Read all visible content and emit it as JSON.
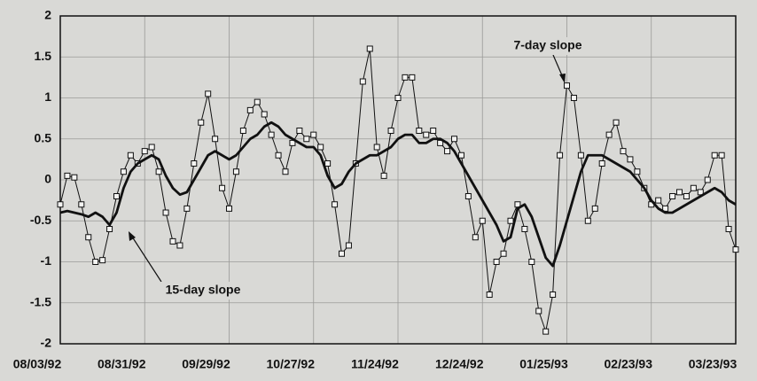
{
  "chart_data": {
    "type": "line",
    "categories": [
      "08/03/92",
      null,
      null,
      null,
      null,
      null,
      null,
      null,
      null,
      null,
      null,
      null,
      "08/31/92",
      null,
      null,
      null,
      null,
      null,
      null,
      null,
      null,
      null,
      null,
      null,
      "09/29/92",
      null,
      null,
      null,
      null,
      null,
      null,
      null,
      null,
      null,
      null,
      null,
      "10/27/92",
      null,
      null,
      null,
      null,
      null,
      null,
      null,
      null,
      null,
      null,
      null,
      "11/24/92",
      null,
      null,
      null,
      null,
      null,
      null,
      null,
      null,
      null,
      null,
      null,
      "12/24/92",
      null,
      null,
      null,
      null,
      null,
      null,
      null,
      null,
      null,
      null,
      null,
      "01/25/93",
      null,
      null,
      null,
      null,
      null,
      null,
      null,
      null,
      null,
      null,
      null,
      "02/23/93",
      null,
      null,
      null,
      null,
      null,
      null,
      null,
      null,
      null,
      null,
      null,
      "03/23/93"
    ],
    "series": [
      {
        "name": "7-day slope",
        "color": "#111111",
        "marker": "square",
        "values": [
          -0.3,
          0.05,
          0.03,
          -0.3,
          -0.7,
          -1.0,
          -0.98,
          -0.6,
          -0.2,
          0.1,
          0.3,
          0.2,
          0.35,
          0.4,
          0.1,
          -0.4,
          -0.75,
          -0.8,
          -0.35,
          0.2,
          0.7,
          1.05,
          0.5,
          -0.1,
          -0.35,
          0.1,
          0.6,
          0.85,
          0.95,
          0.8,
          0.55,
          0.3,
          0.1,
          0.45,
          0.6,
          0.5,
          0.55,
          0.4,
          0.2,
          -0.3,
          -0.9,
          -0.8,
          0.2,
          1.2,
          1.6,
          0.4,
          0.05,
          0.6,
          1.0,
          1.25,
          1.25,
          0.6,
          0.55,
          0.6,
          0.45,
          0.35,
          0.5,
          0.3,
          -0.2,
          -0.7,
          -0.5,
          -1.4,
          -1.0,
          -0.9,
          -0.5,
          -0.3,
          -0.6,
          -1.0,
          -1.6,
          -1.85,
          -1.4,
          0.3,
          1.15,
          1.0,
          0.3,
          -0.5,
          -0.35,
          0.2,
          0.55,
          0.7,
          0.35,
          0.25,
          0.1,
          -0.1,
          -0.3,
          -0.25,
          -0.35,
          -0.2,
          -0.15,
          -0.2,
          -0.1,
          -0.15,
          0.0,
          0.3,
          0.3,
          -0.6,
          -0.85
        ]
      },
      {
        "name": "15-day slope",
        "color": "#111111",
        "values": [
          -0.4,
          -0.38,
          -0.4,
          -0.42,
          -0.45,
          -0.4,
          -0.45,
          -0.55,
          -0.4,
          -0.1,
          0.1,
          0.2,
          0.25,
          0.3,
          0.25,
          0.05,
          -0.1,
          -0.18,
          -0.15,
          0.0,
          0.15,
          0.3,
          0.35,
          0.3,
          0.25,
          0.3,
          0.4,
          0.5,
          0.55,
          0.65,
          0.7,
          0.65,
          0.55,
          0.5,
          0.45,
          0.4,
          0.4,
          0.3,
          0.05,
          -0.1,
          -0.05,
          0.1,
          0.2,
          0.25,
          0.3,
          0.3,
          0.35,
          0.4,
          0.5,
          0.55,
          0.55,
          0.45,
          0.45,
          0.5,
          0.5,
          0.45,
          0.35,
          0.2,
          0.05,
          -0.1,
          -0.25,
          -0.4,
          -0.55,
          -0.75,
          -0.7,
          -0.35,
          -0.3,
          -0.45,
          -0.7,
          -0.95,
          -1.05,
          -0.8,
          -0.5,
          -0.2,
          0.1,
          0.3,
          0.3,
          0.3,
          0.25,
          0.2,
          0.15,
          0.1,
          0.0,
          -0.1,
          -0.25,
          -0.35,
          -0.4,
          -0.4,
          -0.35,
          -0.3,
          -0.25,
          -0.2,
          -0.15,
          -0.1,
          -0.15,
          -0.25,
          -0.3
        ]
      }
    ],
    "ylim": [
      -2,
      2
    ],
    "yticks": [
      -2,
      -1.5,
      -1,
      -0.5,
      0,
      0.5,
      1,
      1.5,
      2
    ],
    "grid": true
  }
}
